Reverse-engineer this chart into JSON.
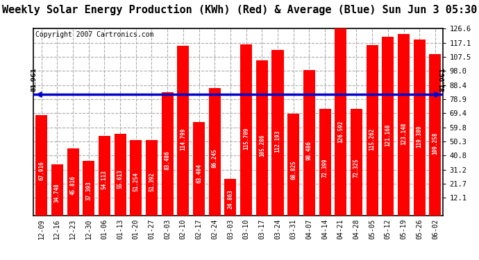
{
  "title": "Weekly Solar Energy Production (KWh) (Red) & Average (Blue) Sun Jun 3 05:30",
  "copyright": "Copyright 2007 Cartronics.com",
  "categories": [
    "12-09",
    "12-16",
    "12-23",
    "12-30",
    "01-06",
    "01-13",
    "01-20",
    "01-27",
    "02-03",
    "02-10",
    "02-17",
    "02-24",
    "03-03",
    "03-10",
    "03-17",
    "03-24",
    "03-31",
    "04-07",
    "04-14",
    "04-21",
    "04-28",
    "05-05",
    "05-12",
    "05-19",
    "05-26",
    "06-02"
  ],
  "values": [
    67.916,
    34.748,
    45.816,
    37.393,
    54.113,
    55.613,
    51.254,
    51.392,
    83.486,
    114.799,
    63.404,
    86.245,
    24.863,
    115.709,
    105.286,
    112.193,
    68.825,
    98.486,
    72.399,
    126.592,
    72.325,
    115.262,
    121.168,
    123.148,
    119.389,
    109.258
  ],
  "average": 81.961,
  "bar_color": "#FF0000",
  "avg_line_color": "#0000CC",
  "background_color": "#FFFFFF",
  "plot_bg_color": "#FFFFFF",
  "grid_color": "#AAAAAA",
  "yticks": [
    12.1,
    21.7,
    31.2,
    40.8,
    50.3,
    59.8,
    69.4,
    78.9,
    88.4,
    98.0,
    107.5,
    117.1,
    126.6
  ],
  "ymin": 0,
  "ymax": 126.6,
  "yaxis_min_display": 12.1,
  "title_fontsize": 11,
  "copyright_fontsize": 7,
  "bar_label_fontsize": 5.5,
  "xtick_label_fontsize": 7,
  "ytick_label_fontsize": 7.5
}
